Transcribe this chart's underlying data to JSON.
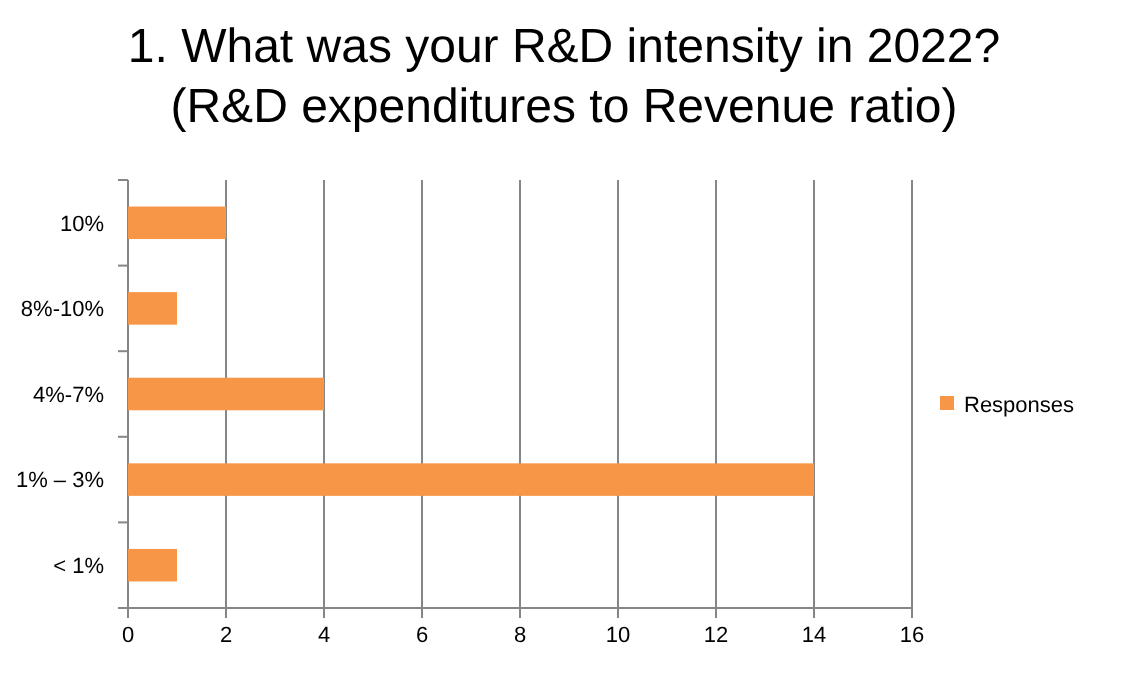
{
  "chart_data": {
    "type": "bar",
    "orientation": "horizontal",
    "title": "1. What was your R&D intensity in 2022?\n(R&D expenditures to Revenue ratio)",
    "categories": [
      "10%",
      "8%-10%",
      "4%-7%",
      "1% – 3%",
      "< 1%"
    ],
    "series": [
      {
        "name": "Responses",
        "color": "#f79646",
        "values": [
          2,
          1,
          4,
          14,
          1
        ]
      }
    ],
    "xlim": [
      0,
      16
    ],
    "xticks": [
      0,
      2,
      4,
      6,
      8,
      10,
      12,
      14,
      16
    ],
    "grid": "x",
    "legend": "right"
  }
}
